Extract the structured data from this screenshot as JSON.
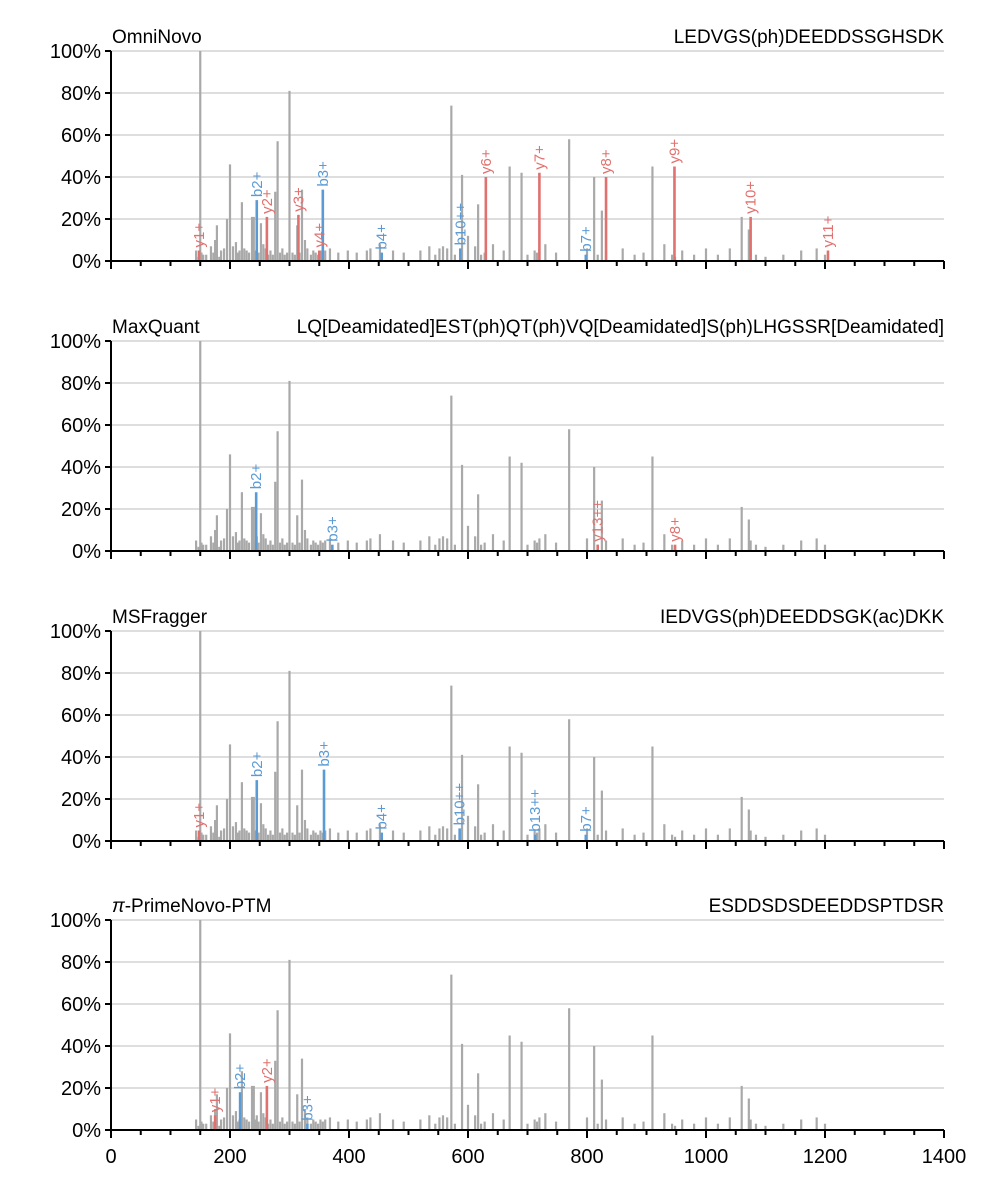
{
  "chart_data": {
    "type": "bar",
    "subtype": "annotated-mass-spectrum",
    "xlim": [
      0,
      1400
    ],
    "ylim": [
      0,
      100
    ],
    "x_ticks": [
      0,
      200,
      400,
      600,
      800,
      1000,
      1200,
      1400
    ],
    "x_tick_labels": [
      "0",
      "200",
      "400",
      "600",
      "800",
      "1000",
      "1200",
      "1400"
    ],
    "y_ticks": [
      0,
      20,
      40,
      60,
      80,
      100
    ],
    "y_tick_labels": [
      "0%",
      "20%",
      "40%",
      "60%",
      "80%",
      "100%"
    ],
    "grid": "horizontal",
    "colors": {
      "peak": "#a9a9a9",
      "b_ion": "#5b9bd5",
      "y_ion": "#e0716e",
      "axis": "#000000",
      "grid": "#d3d3d3"
    },
    "spectrum": {
      "mz": [
        143,
        147,
        150,
        152,
        155,
        160,
        168,
        172,
        175,
        178,
        182,
        185,
        190,
        195,
        200,
        205,
        210,
        213,
        216,
        220,
        224,
        228,
        232,
        237,
        240,
        242,
        245,
        248,
        252,
        256,
        260,
        264,
        268,
        272,
        276,
        280,
        284,
        288,
        292,
        296,
        300,
        305,
        309,
        313,
        317,
        321,
        326,
        330,
        336,
        340,
        344,
        348,
        352,
        356,
        360,
        368,
        382,
        398,
        413,
        430,
        436,
        452,
        474,
        492,
        520,
        535,
        545,
        552,
        558,
        565,
        572,
        578,
        590,
        600,
        612,
        617,
        622,
        628,
        642,
        660,
        670,
        690,
        700,
        712,
        716,
        720,
        730,
        748,
        770,
        800,
        812,
        818,
        825,
        832,
        860,
        880,
        895,
        910,
        930,
        943,
        948,
        960,
        980,
        1000,
        1020,
        1040,
        1060,
        1072,
        1075,
        1084,
        1100,
        1130,
        1160,
        1186,
        1200
      ],
      "intensity": [
        5,
        2,
        100,
        4,
        3,
        3,
        7,
        4,
        10,
        17,
        2,
        5,
        6,
        20,
        46,
        7,
        9,
        4,
        5,
        28,
        6,
        5,
        4,
        21,
        21,
        5,
        7,
        4,
        18,
        8,
        6,
        3,
        5,
        3,
        33,
        57,
        4,
        6,
        3,
        4,
        81,
        4,
        3,
        17,
        4,
        34,
        10,
        6,
        3,
        5,
        4,
        3,
        5,
        4,
        5,
        6,
        4,
        5,
        4,
        5,
        6,
        8,
        5,
        4,
        5,
        7,
        3,
        6,
        7,
        6,
        74,
        3,
        41,
        12,
        7,
        27,
        3,
        4,
        8,
        5,
        45,
        42,
        3,
        5,
        4,
        6,
        8,
        4,
        58,
        6,
        40,
        3,
        24,
        5,
        6,
        3,
        4,
        45,
        8,
        3,
        2,
        5,
        3,
        6,
        3,
        6,
        21,
        15,
        5,
        3,
        2,
        3,
        5,
        6,
        3
      ]
    },
    "panels": [
      {
        "title": "OmniNovo",
        "peptide": "LEDVGS(ph)DEEDDSSGHSDK",
        "ions": [
          {
            "type": "y",
            "label": "y1+",
            "mz": 148,
            "intensity": 5
          },
          {
            "type": "b",
            "label": "b2+",
            "mz": 245,
            "intensity": 29
          },
          {
            "type": "y",
            "label": "y2+",
            "mz": 262,
            "intensity": 21
          },
          {
            "type": "y",
            "label": "y3+",
            "mz": 315,
            "intensity": 22
          },
          {
            "type": "b",
            "label": "b3+",
            "mz": 356,
            "intensity": 34
          },
          {
            "type": "y",
            "label": "y4+",
            "mz": 350,
            "intensity": 5
          },
          {
            "type": "b",
            "label": "b4+",
            "mz": 455,
            "intensity": 4
          },
          {
            "type": "b",
            "label": "b10++",
            "mz": 587,
            "intensity": 6
          },
          {
            "type": "y",
            "label": "y6+",
            "mz": 630,
            "intensity": 40
          },
          {
            "type": "y",
            "label": "y7+",
            "mz": 720,
            "intensity": 42
          },
          {
            "type": "b",
            "label": "b7+",
            "mz": 798,
            "intensity": 3
          },
          {
            "type": "y",
            "label": "y8+",
            "mz": 832,
            "intensity": 40
          },
          {
            "type": "y",
            "label": "y9+",
            "mz": 947,
            "intensity": 45
          },
          {
            "type": "y",
            "label": "y10+",
            "mz": 1075,
            "intensity": 21
          },
          {
            "type": "y",
            "label": "y11+",
            "mz": 1205,
            "intensity": 5
          }
        ]
      },
      {
        "title": "MaxQuant",
        "peptide": "LQ[Deamidated]EST(ph)QT(ph)VQ[Deamidated]S(ph)LHGSSR[Deamidated]",
        "ions": [
          {
            "type": "b",
            "label": "b2+",
            "mz": 244,
            "intensity": 28
          },
          {
            "type": "b",
            "label": "b3+",
            "mz": 372,
            "intensity": 3
          },
          {
            "type": "y",
            "label": "y13++",
            "mz": 818,
            "intensity": 3
          },
          {
            "type": "y",
            "label": "y8+",
            "mz": 948,
            "intensity": 3
          }
        ]
      },
      {
        "title": "MSFragger",
        "peptide": "IEDVGS(ph)DEEDDSGK(ac)DKK",
        "ions": [
          {
            "type": "y",
            "label": "y1+",
            "mz": 148,
            "intensity": 5
          },
          {
            "type": "b",
            "label": "b2+",
            "mz": 245,
            "intensity": 29
          },
          {
            "type": "b",
            "label": "b3+",
            "mz": 358,
            "intensity": 34
          },
          {
            "type": "b",
            "label": "b4+",
            "mz": 455,
            "intensity": 4
          },
          {
            "type": "b",
            "label": "b10++",
            "mz": 586,
            "intensity": 6
          },
          {
            "type": "b",
            "label": "b13++",
            "mz": 713,
            "intensity": 3
          },
          {
            "type": "b",
            "label": "b7+",
            "mz": 798,
            "intensity": 3
          }
        ]
      },
      {
        "title": "π-PrimeNovo-PTM",
        "title_italic_prefix": "π",
        "title_suffix": "-PrimeNovo-PTM",
        "peptide": "ESDDSDSDEEDDSPTDSR",
        "ions": [
          {
            "type": "y",
            "label": "y1+",
            "mz": 175,
            "intensity": 7
          },
          {
            "type": "b",
            "label": "b2+",
            "mz": 217,
            "intensity": 18
          },
          {
            "type": "y",
            "label": "y2+",
            "mz": 262,
            "intensity": 21
          },
          {
            "type": "b",
            "label": "b3+",
            "mz": 330,
            "intensity": 3
          }
        ]
      }
    ]
  }
}
